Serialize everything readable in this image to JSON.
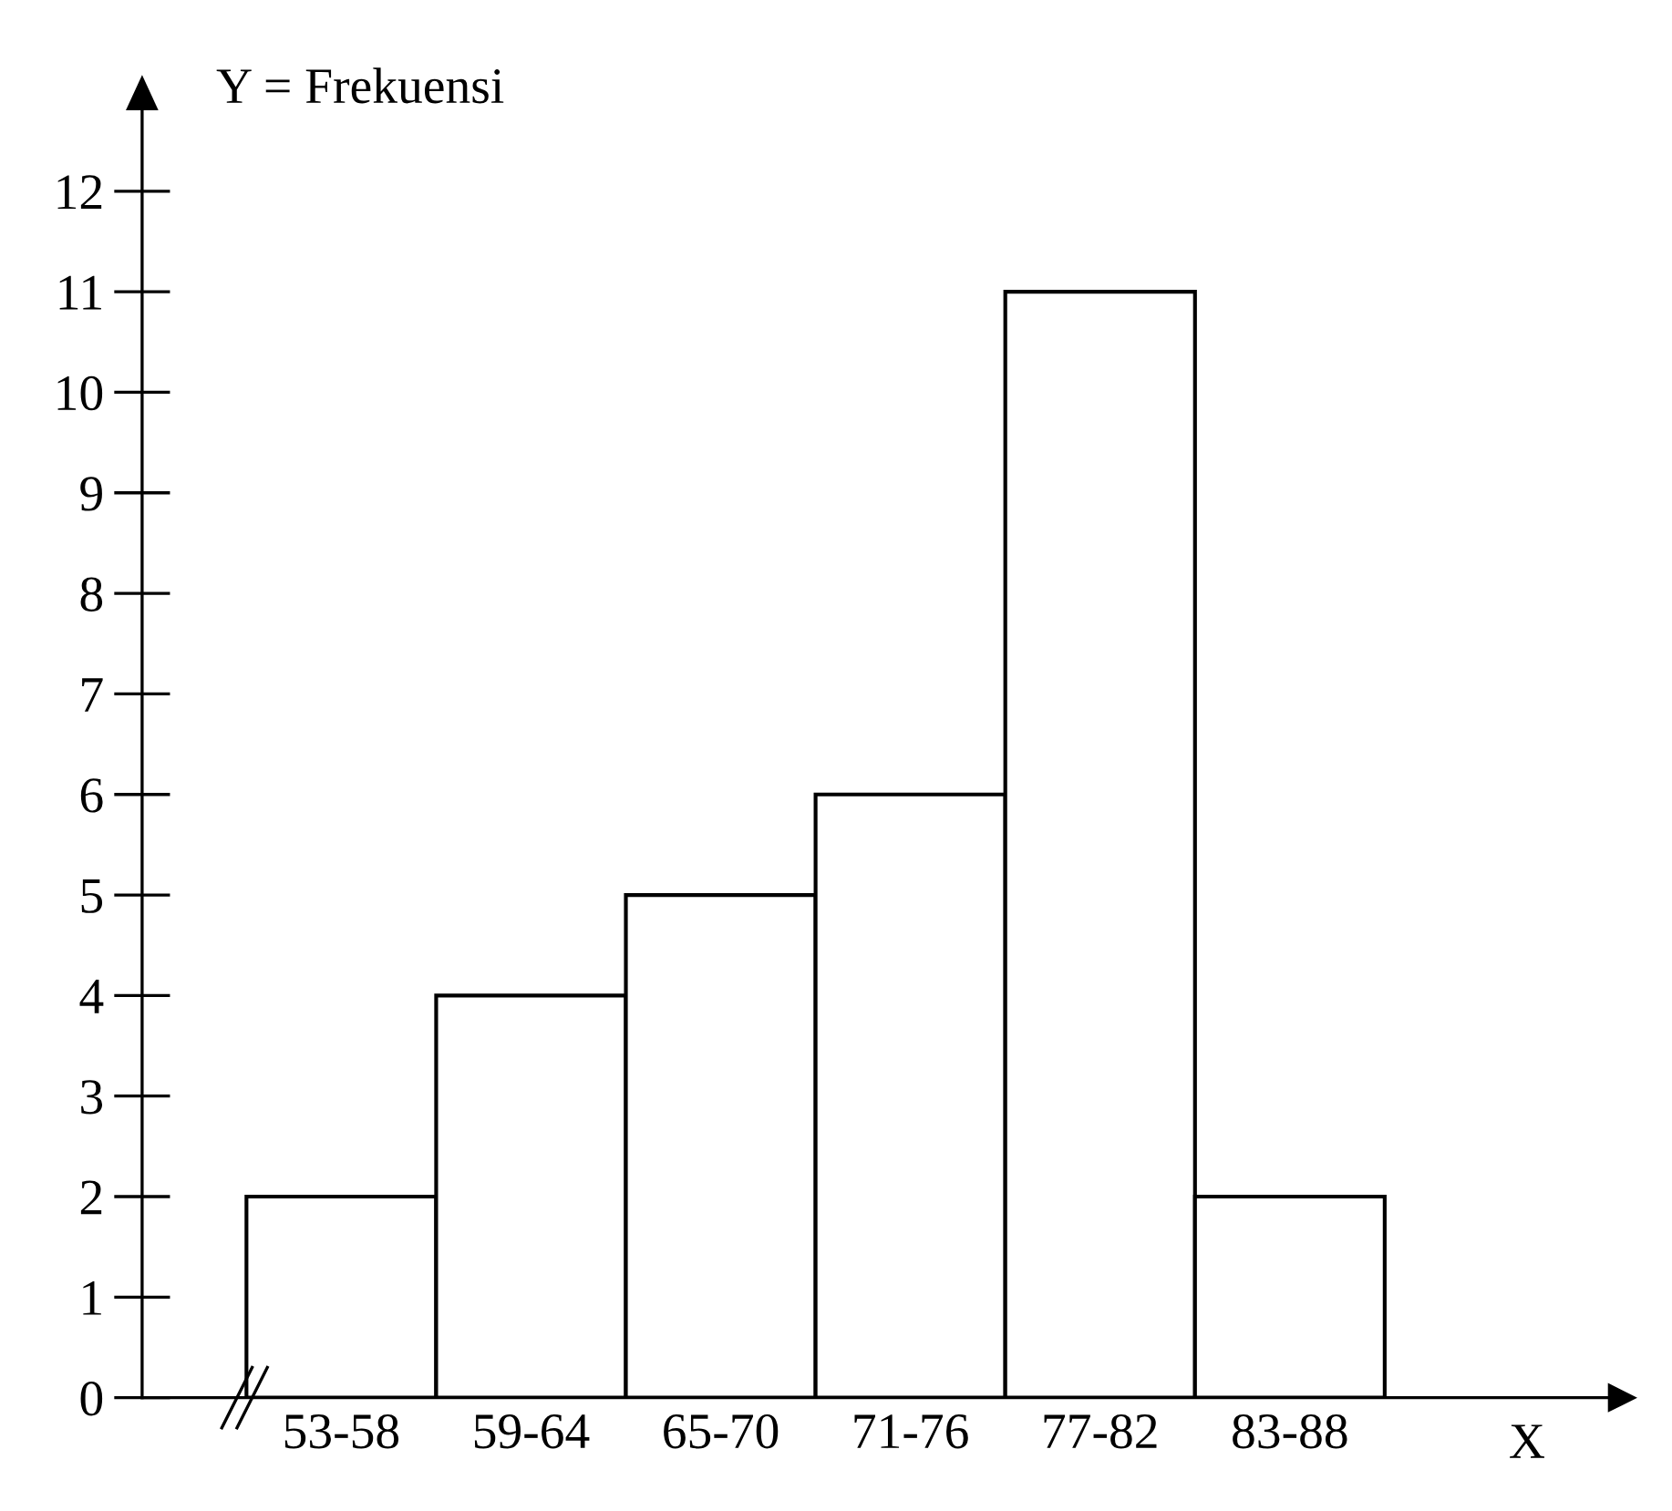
{
  "chart_data": {
    "type": "bar",
    "xlabel": "X",
    "ylabel": "Y = Frekuensi",
    "categories": [
      "53-58",
      "59-64",
      "65-70",
      "71-76",
      "77-82",
      "83-88"
    ],
    "values": [
      2,
      4,
      5,
      6,
      11,
      2
    ],
    "color": "#ffffff",
    "ylim": [
      0,
      13
    ],
    "yticks": [
      0,
      1,
      2,
      3,
      4,
      5,
      6,
      7,
      8,
      9,
      10,
      11,
      12
    ]
  }
}
